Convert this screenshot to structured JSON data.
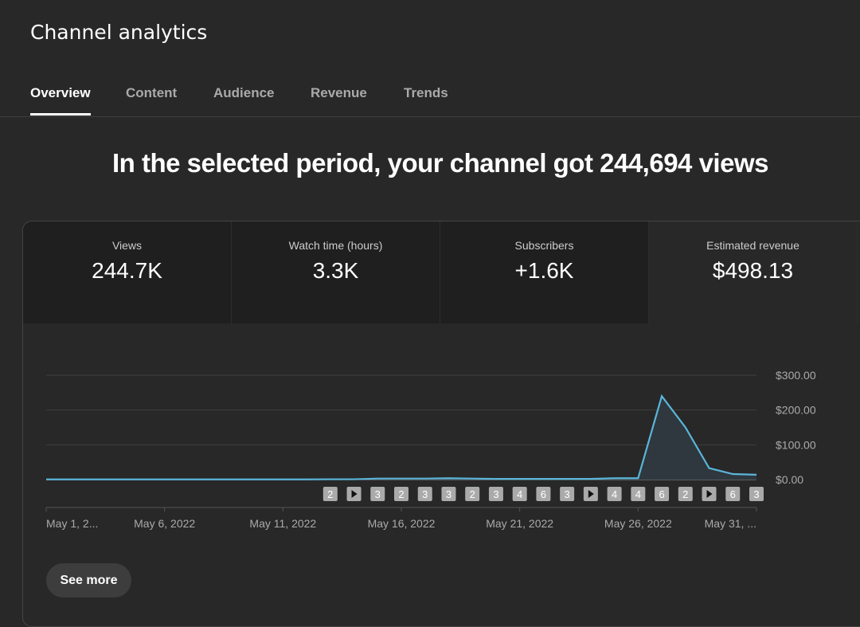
{
  "header": {
    "title": "Channel analytics"
  },
  "tabs": [
    {
      "label": "Overview"
    },
    {
      "label": "Content"
    },
    {
      "label": "Audience"
    },
    {
      "label": "Revenue"
    },
    {
      "label": "Trends"
    }
  ],
  "headline": "In the selected period, your channel got 244,694 views",
  "metrics": [
    {
      "label": "Views",
      "value": "244.7K"
    },
    {
      "label": "Watch time (hours)",
      "value": "3.3K"
    },
    {
      "label": "Subscribers",
      "value": "+1.6K"
    },
    {
      "label": "Estimated revenue",
      "value": "$498.13"
    }
  ],
  "see_more": "See more",
  "colors": {
    "line": "#5bb5d9",
    "background": "#282828"
  },
  "chart_data": {
    "type": "area",
    "ylabel": "",
    "xlabel": "",
    "ylim": [
      0,
      300
    ],
    "yticks": [
      "$0.00",
      "$100.00",
      "$200.00",
      "$300.00"
    ],
    "ytick_values": [
      0,
      100,
      200,
      300
    ],
    "xtick_labels": [
      "May 1, 2...",
      "May 6, 2022",
      "May 11, 2022",
      "May 16, 2022",
      "May 21, 2022",
      "May 26, 2022",
      "May 31, ..."
    ],
    "xtick_days": [
      1,
      6,
      11,
      16,
      21,
      26,
      31
    ],
    "x": [
      1,
      2,
      3,
      4,
      5,
      6,
      7,
      8,
      9,
      10,
      11,
      12,
      13,
      14,
      15,
      16,
      17,
      18,
      19,
      20,
      21,
      22,
      23,
      24,
      25,
      26,
      27,
      28,
      29,
      30,
      31
    ],
    "values": [
      0.5,
      0.5,
      0.5,
      0.5,
      0.5,
      0.5,
      0.5,
      0.5,
      0.5,
      0.5,
      0.5,
      0.5,
      1,
      1,
      3,
      3,
      3,
      4,
      3,
      2,
      2,
      2,
      2,
      2,
      4,
      4,
      240,
      150,
      33,
      16,
      14
    ],
    "grid": true,
    "markers": {
      "start_day": 13,
      "labels": [
        "2",
        "play",
        "3",
        "2",
        "3",
        "3",
        "2",
        "3",
        "4",
        "6",
        "3",
        "play",
        "4",
        "4",
        "6",
        "2",
        "play",
        "6",
        "3"
      ]
    }
  }
}
